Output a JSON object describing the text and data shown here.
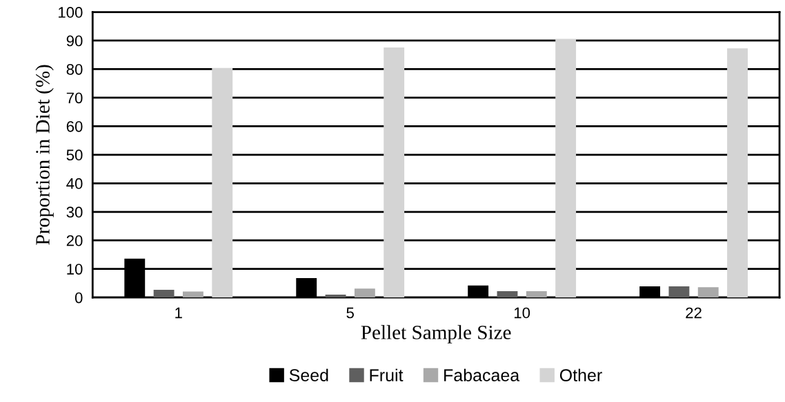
{
  "chart_data": {
    "type": "bar",
    "xlabel": "Pellet Sample Size",
    "ylabel": "Proportion in Diet (%)",
    "categories": [
      "1",
      "5",
      "10",
      "22"
    ],
    "series": [
      {
        "name": "Seed",
        "color": "#000000",
        "values": [
          13.6,
          6.8,
          4.2,
          3.9
        ]
      },
      {
        "name": "Fruit",
        "color": "#5f5f5f",
        "values": [
          2.7,
          1.0,
          2.2,
          3.9
        ]
      },
      {
        "name": "Fabacaea",
        "color": "#a9a9a9",
        "values": [
          2.1,
          3.1,
          2.2,
          3.6
        ]
      },
      {
        "name": "Other",
        "color": "#d4d4d4",
        "values": [
          80.4,
          87.6,
          90.6,
          87.3
        ]
      }
    ],
    "ylim": [
      0,
      100
    ],
    "yticks": [
      0,
      10,
      20,
      30,
      40,
      50,
      60,
      70,
      80,
      90,
      100
    ],
    "grid": "y",
    "legend": "bottom"
  }
}
